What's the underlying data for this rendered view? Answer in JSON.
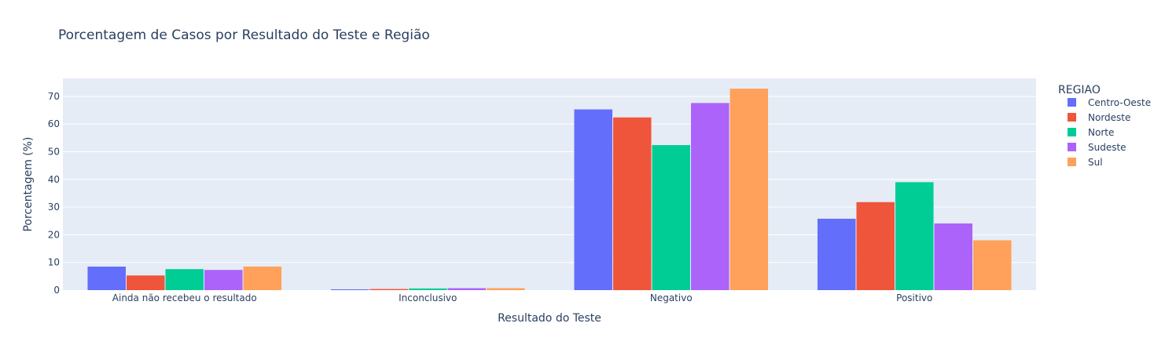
{
  "chart_data": {
    "type": "bar",
    "title": "Porcentagem de Casos por Resultado do Teste e Região",
    "xlabel": "Resultado do Teste",
    "ylabel": "Porcentagem (%)",
    "ylim": [
      0,
      76.5
    ],
    "yticks": [
      0,
      10,
      20,
      30,
      40,
      50,
      60,
      70
    ],
    "grid": true,
    "legend_title": "REGIAO",
    "legend_position": "right",
    "categories": [
      "Ainda não recebeu o resultado",
      "Inconclusivo",
      "Negativo",
      "Positivo"
    ],
    "series": [
      {
        "name": "Centro-Oeste",
        "color": "#636efa",
        "values": [
          8.5,
          0.3,
          65.3,
          25.8
        ]
      },
      {
        "name": "Nordeste",
        "color": "#ef553b",
        "values": [
          5.3,
          0.4,
          62.4,
          31.8
        ]
      },
      {
        "name": "Norte",
        "color": "#00cc96",
        "values": [
          7.6,
          0.6,
          52.4,
          39.0
        ]
      },
      {
        "name": "Sudeste",
        "color": "#ab63fa",
        "values": [
          7.3,
          0.7,
          67.6,
          24.1
        ]
      },
      {
        "name": "Sul",
        "color": "#ffa15a",
        "values": [
          8.5,
          0.7,
          72.8,
          18.0
        ]
      }
    ]
  }
}
